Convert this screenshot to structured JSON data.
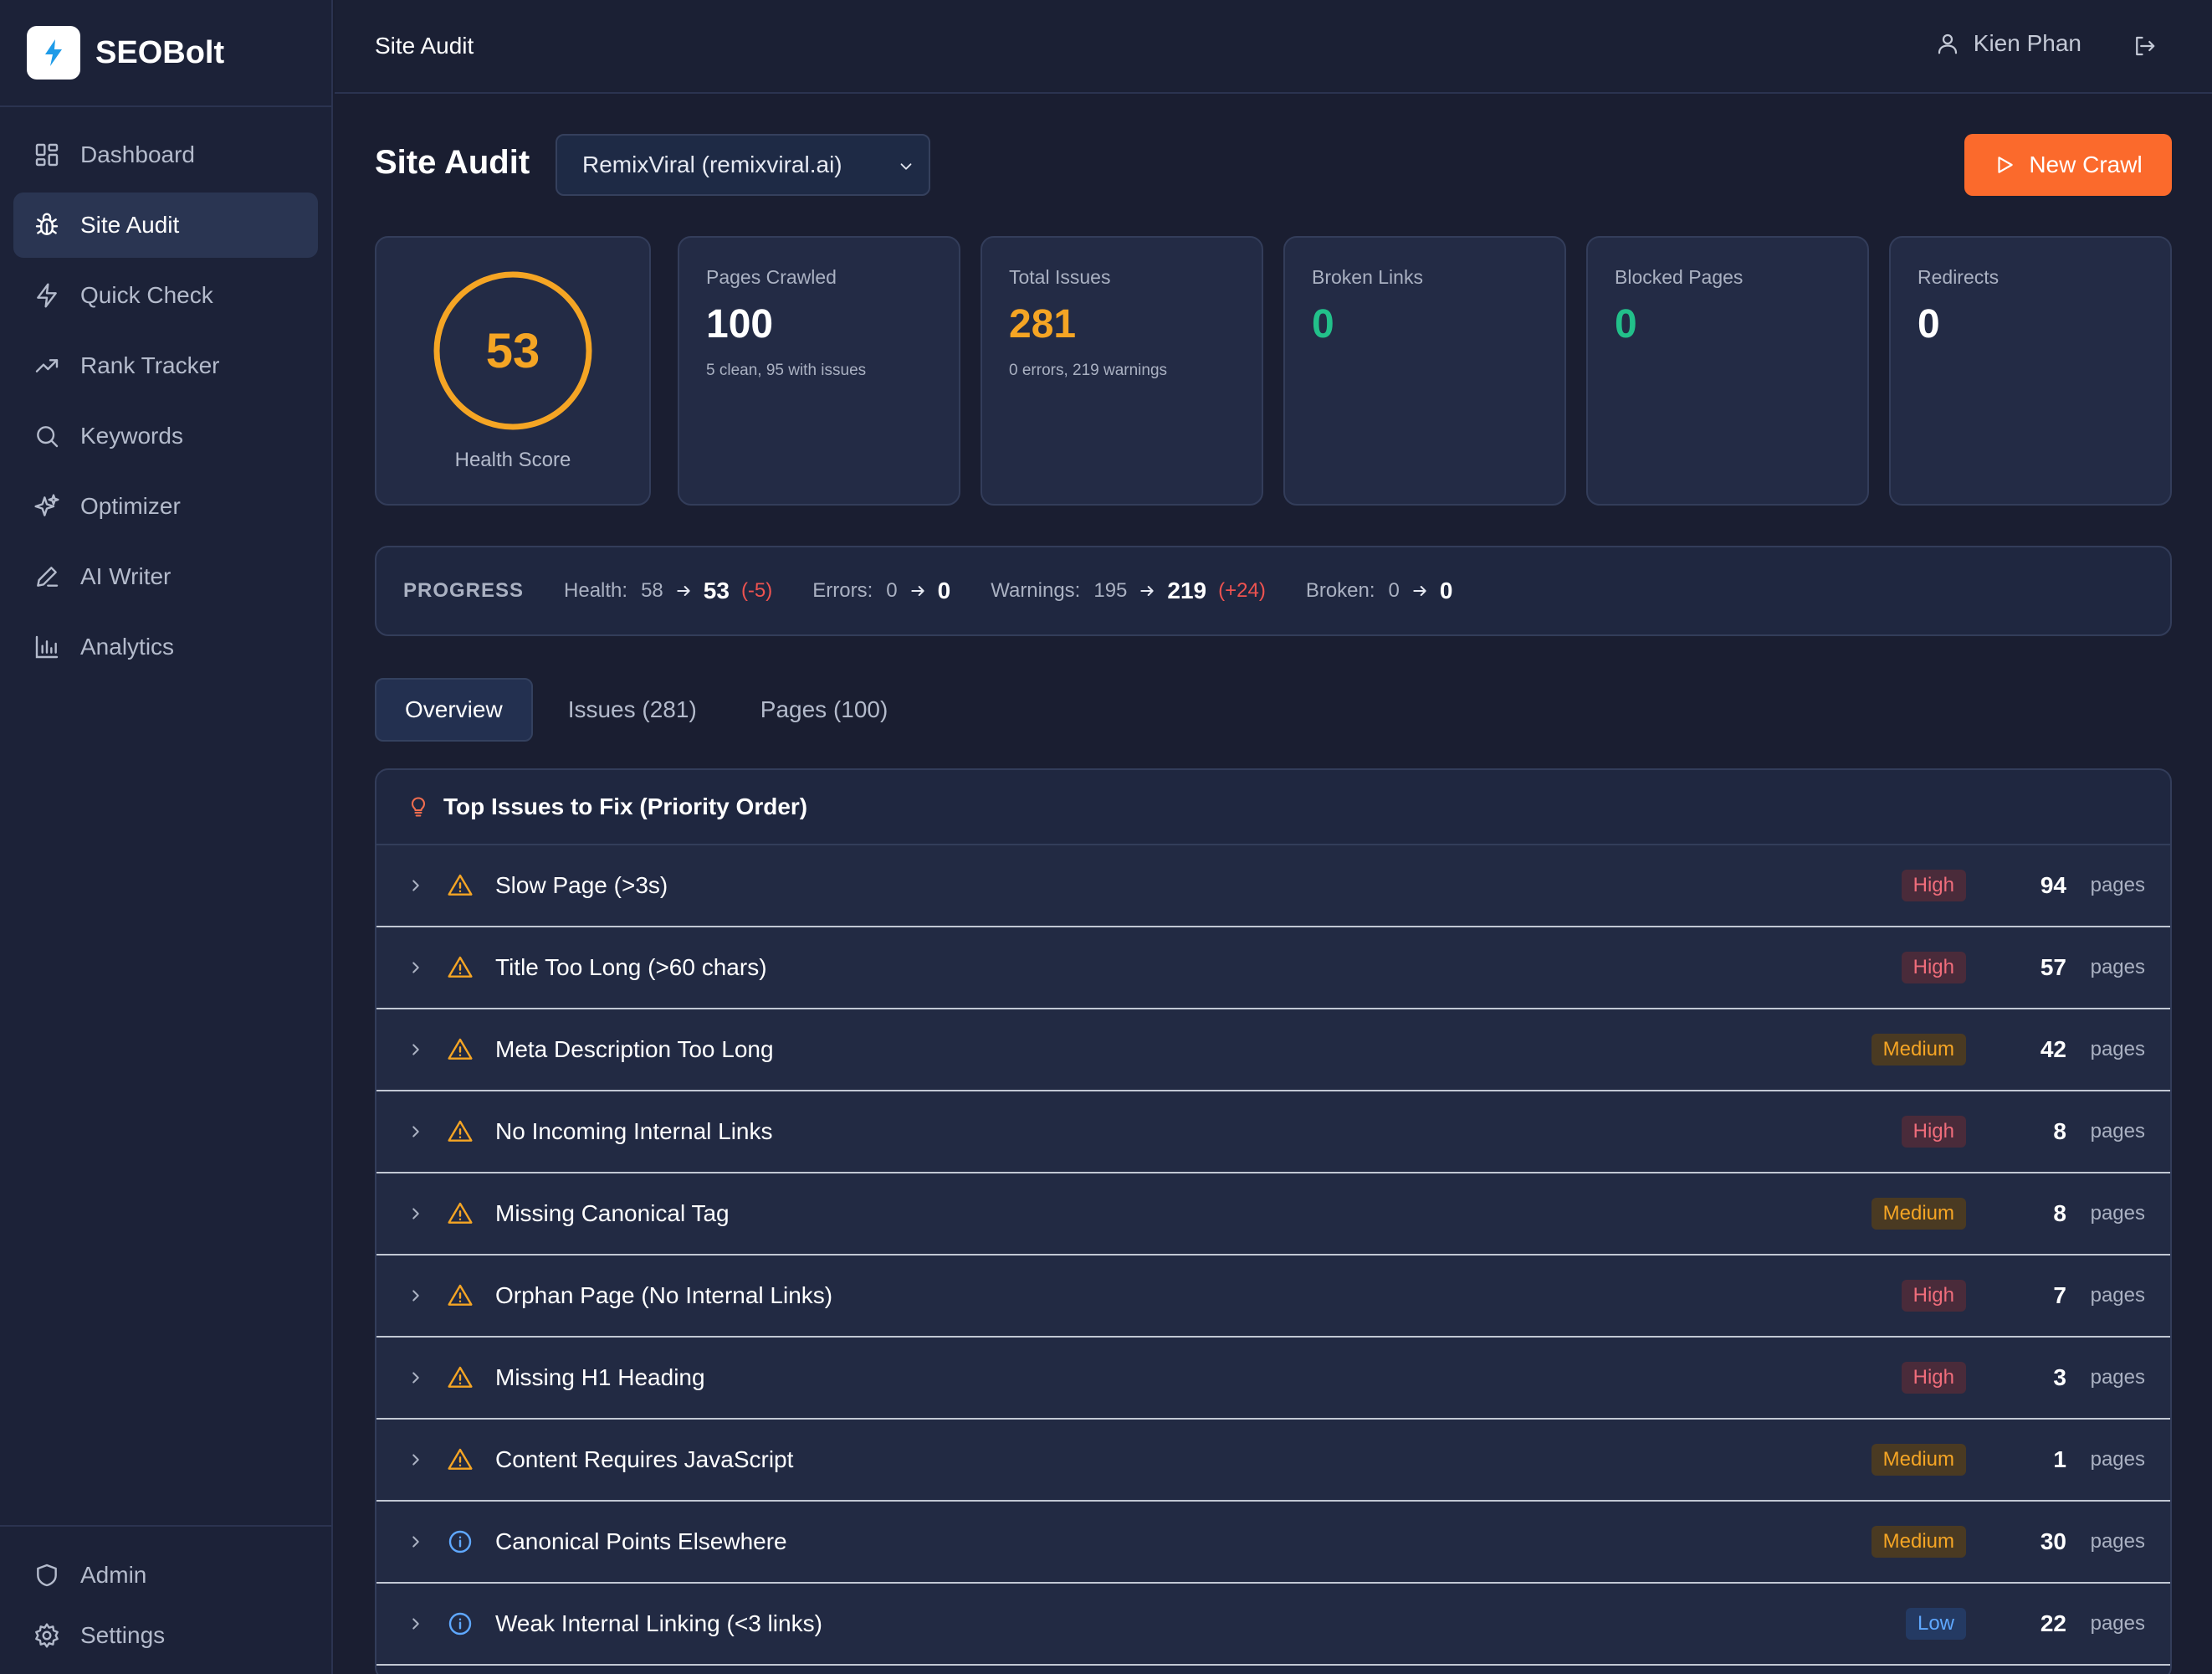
{
  "brand": {
    "name": "SEOBolt"
  },
  "sidebar": {
    "items": [
      {
        "label": "Dashboard",
        "icon": "dashboard-icon"
      },
      {
        "label": "Site Audit",
        "icon": "bug-icon"
      },
      {
        "label": "Quick Check",
        "icon": "bolt-icon"
      },
      {
        "label": "Rank Tracker",
        "icon": "trending-up-icon"
      },
      {
        "label": "Keywords",
        "icon": "search-icon"
      },
      {
        "label": "Optimizer",
        "icon": "sparkles-icon"
      },
      {
        "label": "AI Writer",
        "icon": "pen-icon"
      },
      {
        "label": "Analytics",
        "icon": "bar-chart-icon"
      }
    ],
    "bottom": [
      {
        "label": "Admin",
        "icon": "shield-icon"
      },
      {
        "label": "Settings",
        "icon": "gear-icon"
      }
    ]
  },
  "topbar": {
    "title": "Site Audit",
    "user_name": "Kien Phan"
  },
  "header": {
    "title": "Site Audit",
    "site_select": "RemixViral (remixviral.ai)",
    "new_crawl": "New Crawl"
  },
  "stats": {
    "health": {
      "value": "53",
      "score": 53,
      "label": "Health Score"
    },
    "pages_crawled": {
      "label": "Pages Crawled",
      "value": "100",
      "sub": "5 clean, 95 with issues"
    },
    "total_issues": {
      "label": "Total Issues",
      "value": "281",
      "sub": "0 errors, 219 warnings"
    },
    "broken_links": {
      "label": "Broken Links",
      "value": "0"
    },
    "blocked_pages": {
      "label": "Blocked Pages",
      "value": "0"
    },
    "redirects": {
      "label": "Redirects",
      "value": "0"
    }
  },
  "progress": {
    "title": "PROGRESS",
    "health": {
      "label": "Health:",
      "old": "58",
      "new": "53",
      "delta": "(-5)"
    },
    "errors": {
      "label": "Errors:",
      "old": "0",
      "new": "0"
    },
    "warnings": {
      "label": "Warnings:",
      "old": "195",
      "new": "219",
      "delta": "(+24)"
    },
    "broken": {
      "label": "Broken:",
      "old": "0",
      "new": "0"
    }
  },
  "tabs": [
    "Overview",
    "Issues (281)",
    "Pages (100)"
  ],
  "issues": {
    "title": "Top Issues to Fix (Priority Order)",
    "unit": "pages",
    "rows": [
      {
        "name": "Slow Page (>3s)",
        "severity": "High",
        "count": "94",
        "icon": "warning-icon"
      },
      {
        "name": "Title Too Long (>60 chars)",
        "severity": "High",
        "count": "57",
        "icon": "warning-icon"
      },
      {
        "name": "Meta Description Too Long",
        "severity": "Medium",
        "count": "42",
        "icon": "warning-icon"
      },
      {
        "name": "No Incoming Internal Links",
        "severity": "High",
        "count": "8",
        "icon": "warning-icon"
      },
      {
        "name": "Missing Canonical Tag",
        "severity": "Medium",
        "count": "8",
        "icon": "warning-icon"
      },
      {
        "name": "Orphan Page (No Internal Links)",
        "severity": "High",
        "count": "7",
        "icon": "warning-icon"
      },
      {
        "name": "Missing H1 Heading",
        "severity": "High",
        "count": "3",
        "icon": "warning-icon"
      },
      {
        "name": "Content Requires JavaScript",
        "severity": "Medium",
        "count": "1",
        "icon": "warning-icon"
      },
      {
        "name": "Canonical Points Elsewhere",
        "severity": "Medium",
        "count": "30",
        "icon": "info-icon"
      },
      {
        "name": "Weak Internal Linking (<3 links)",
        "severity": "Low",
        "count": "22",
        "icon": "info-icon"
      }
    ]
  },
  "colors": {
    "accent": "#fb6a2c",
    "health": "#f5a524",
    "good": "#22c08a",
    "high": "#f06d7b",
    "medium": "#f5a524",
    "low": "#5fa8ff",
    "info": "#5fa8ff"
  }
}
